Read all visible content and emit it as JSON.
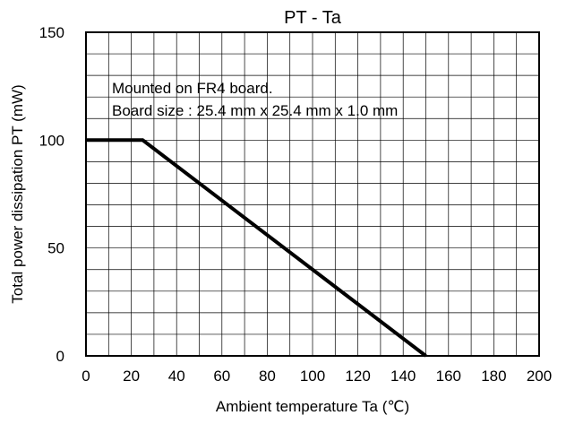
{
  "chart_data": {
    "type": "line",
    "title": "PT - Ta",
    "xlabel": "Ambient temperature Ta (℃)",
    "ylabel": "Total power dissipation PT (mW)",
    "xlim": [
      0,
      200
    ],
    "ylim": [
      0,
      150
    ],
    "x_ticks": [
      0,
      20,
      40,
      60,
      80,
      100,
      120,
      140,
      160,
      180,
      200
    ],
    "y_ticks": [
      0,
      50,
      100,
      150
    ],
    "x_minor_step": 10,
    "y_minor_step": 10,
    "grid": true,
    "series": [
      {
        "x": [
          0,
          25,
          150
        ],
        "y": [
          100,
          100,
          0
        ],
        "color": "#000000"
      }
    ],
    "annotations": [
      "Mounted on FR4 board.",
      "Board size : 25.4 mm x 25.4 mm x 1.0 mm"
    ]
  }
}
